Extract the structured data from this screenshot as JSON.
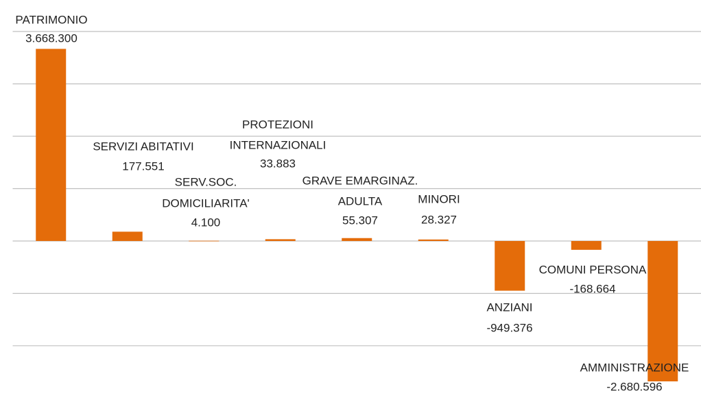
{
  "chart_data": {
    "type": "bar",
    "categories": [
      [
        "PATRIMONIO"
      ],
      [
        "SERVIZI ABITATIVI"
      ],
      [
        "SERV.SOC.",
        "DOMICILIARITA'"
      ],
      [
        "PROTEZIONI",
        "INTERNAZIONALI"
      ],
      [
        "GRAVE EMARGINAZ.",
        "ADULTA"
      ],
      [
        "MINORI"
      ],
      [
        "ANZIANI"
      ],
      [
        "COMUNI PERSONA"
      ],
      [
        "AMMINISTRAZIONE"
      ]
    ],
    "values": [
      3668300,
      177551,
      4100,
      33883,
      55307,
      28327,
      -949376,
      -168664,
      -2680596
    ],
    "value_labels": [
      "3.668.300",
      "177.551",
      "4.100",
      "33.883",
      "55.307",
      "28.327",
      "-949.376",
      "-168.664",
      "-2.680.596"
    ],
    "color": "#e46c0a",
    "ylim": [
      -2700000,
      4000000
    ],
    "yticks": [
      4000000,
      3000000,
      2000000,
      1000000,
      0,
      -1000000,
      -2000000
    ],
    "grid": true
  }
}
